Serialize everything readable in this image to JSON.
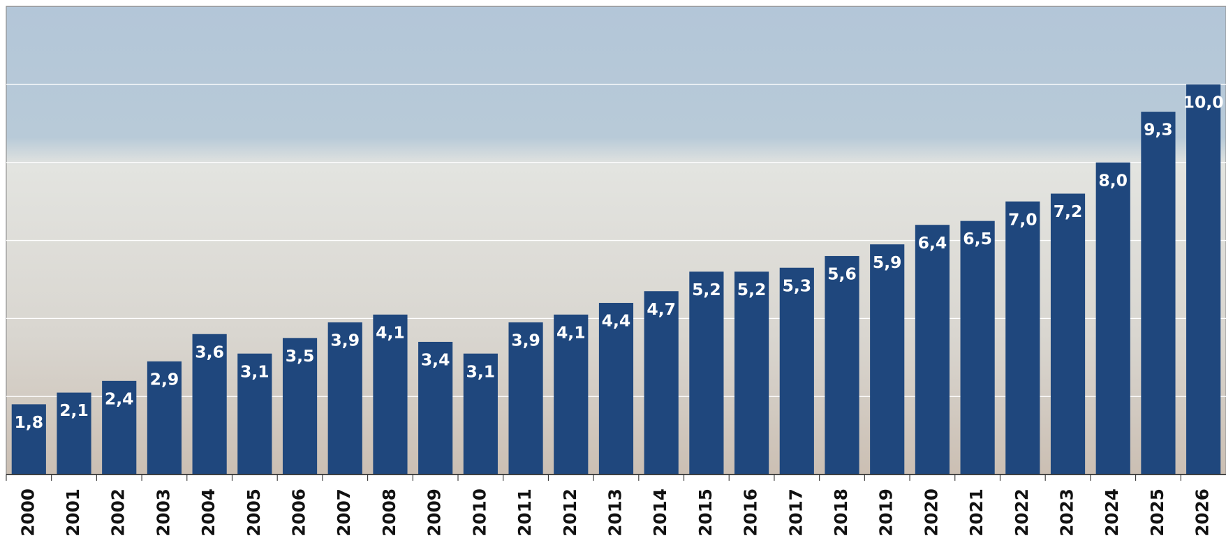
{
  "chart_data": {
    "type": "bar",
    "categories": [
      "2000",
      "2001",
      "2002",
      "2003",
      "2004",
      "2005",
      "2006",
      "2007",
      "2008",
      "2009",
      "2010",
      "2011",
      "2012",
      "2013",
      "2014",
      "2015",
      "2016",
      "2017",
      "2018",
      "2019",
      "2020",
      "2021",
      "2022",
      "2023",
      "2024",
      "2025",
      "2026"
    ],
    "values": [
      1.8,
      2.1,
      2.4,
      2.9,
      3.6,
      3.1,
      3.5,
      3.9,
      4.1,
      3.4,
      3.1,
      3.9,
      4.1,
      4.4,
      4.7,
      5.2,
      5.2,
      5.3,
      5.6,
      5.9,
      6.4,
      6.5,
      7.0,
      7.2,
      8.0,
      9.3,
      10.0
    ],
    "value_labels": [
      "1,8",
      "2,1",
      "2,4",
      "2,9",
      "3,6",
      "3,1",
      "3,5",
      "3,9",
      "4,1",
      "3,4",
      "3,1",
      "3,9",
      "4,1",
      "4,4",
      "4,7",
      "5,2",
      "5,2",
      "5,3",
      "5,6",
      "5,9",
      "6,4",
      "6,5",
      "7,0",
      "7,2",
      "8,0",
      "9,3",
      "10,0"
    ],
    "color": "#1f477d",
    "ylim": [
      0,
      12
    ],
    "yticks": [
      2,
      4,
      6,
      8,
      10
    ],
    "grid": true
  }
}
